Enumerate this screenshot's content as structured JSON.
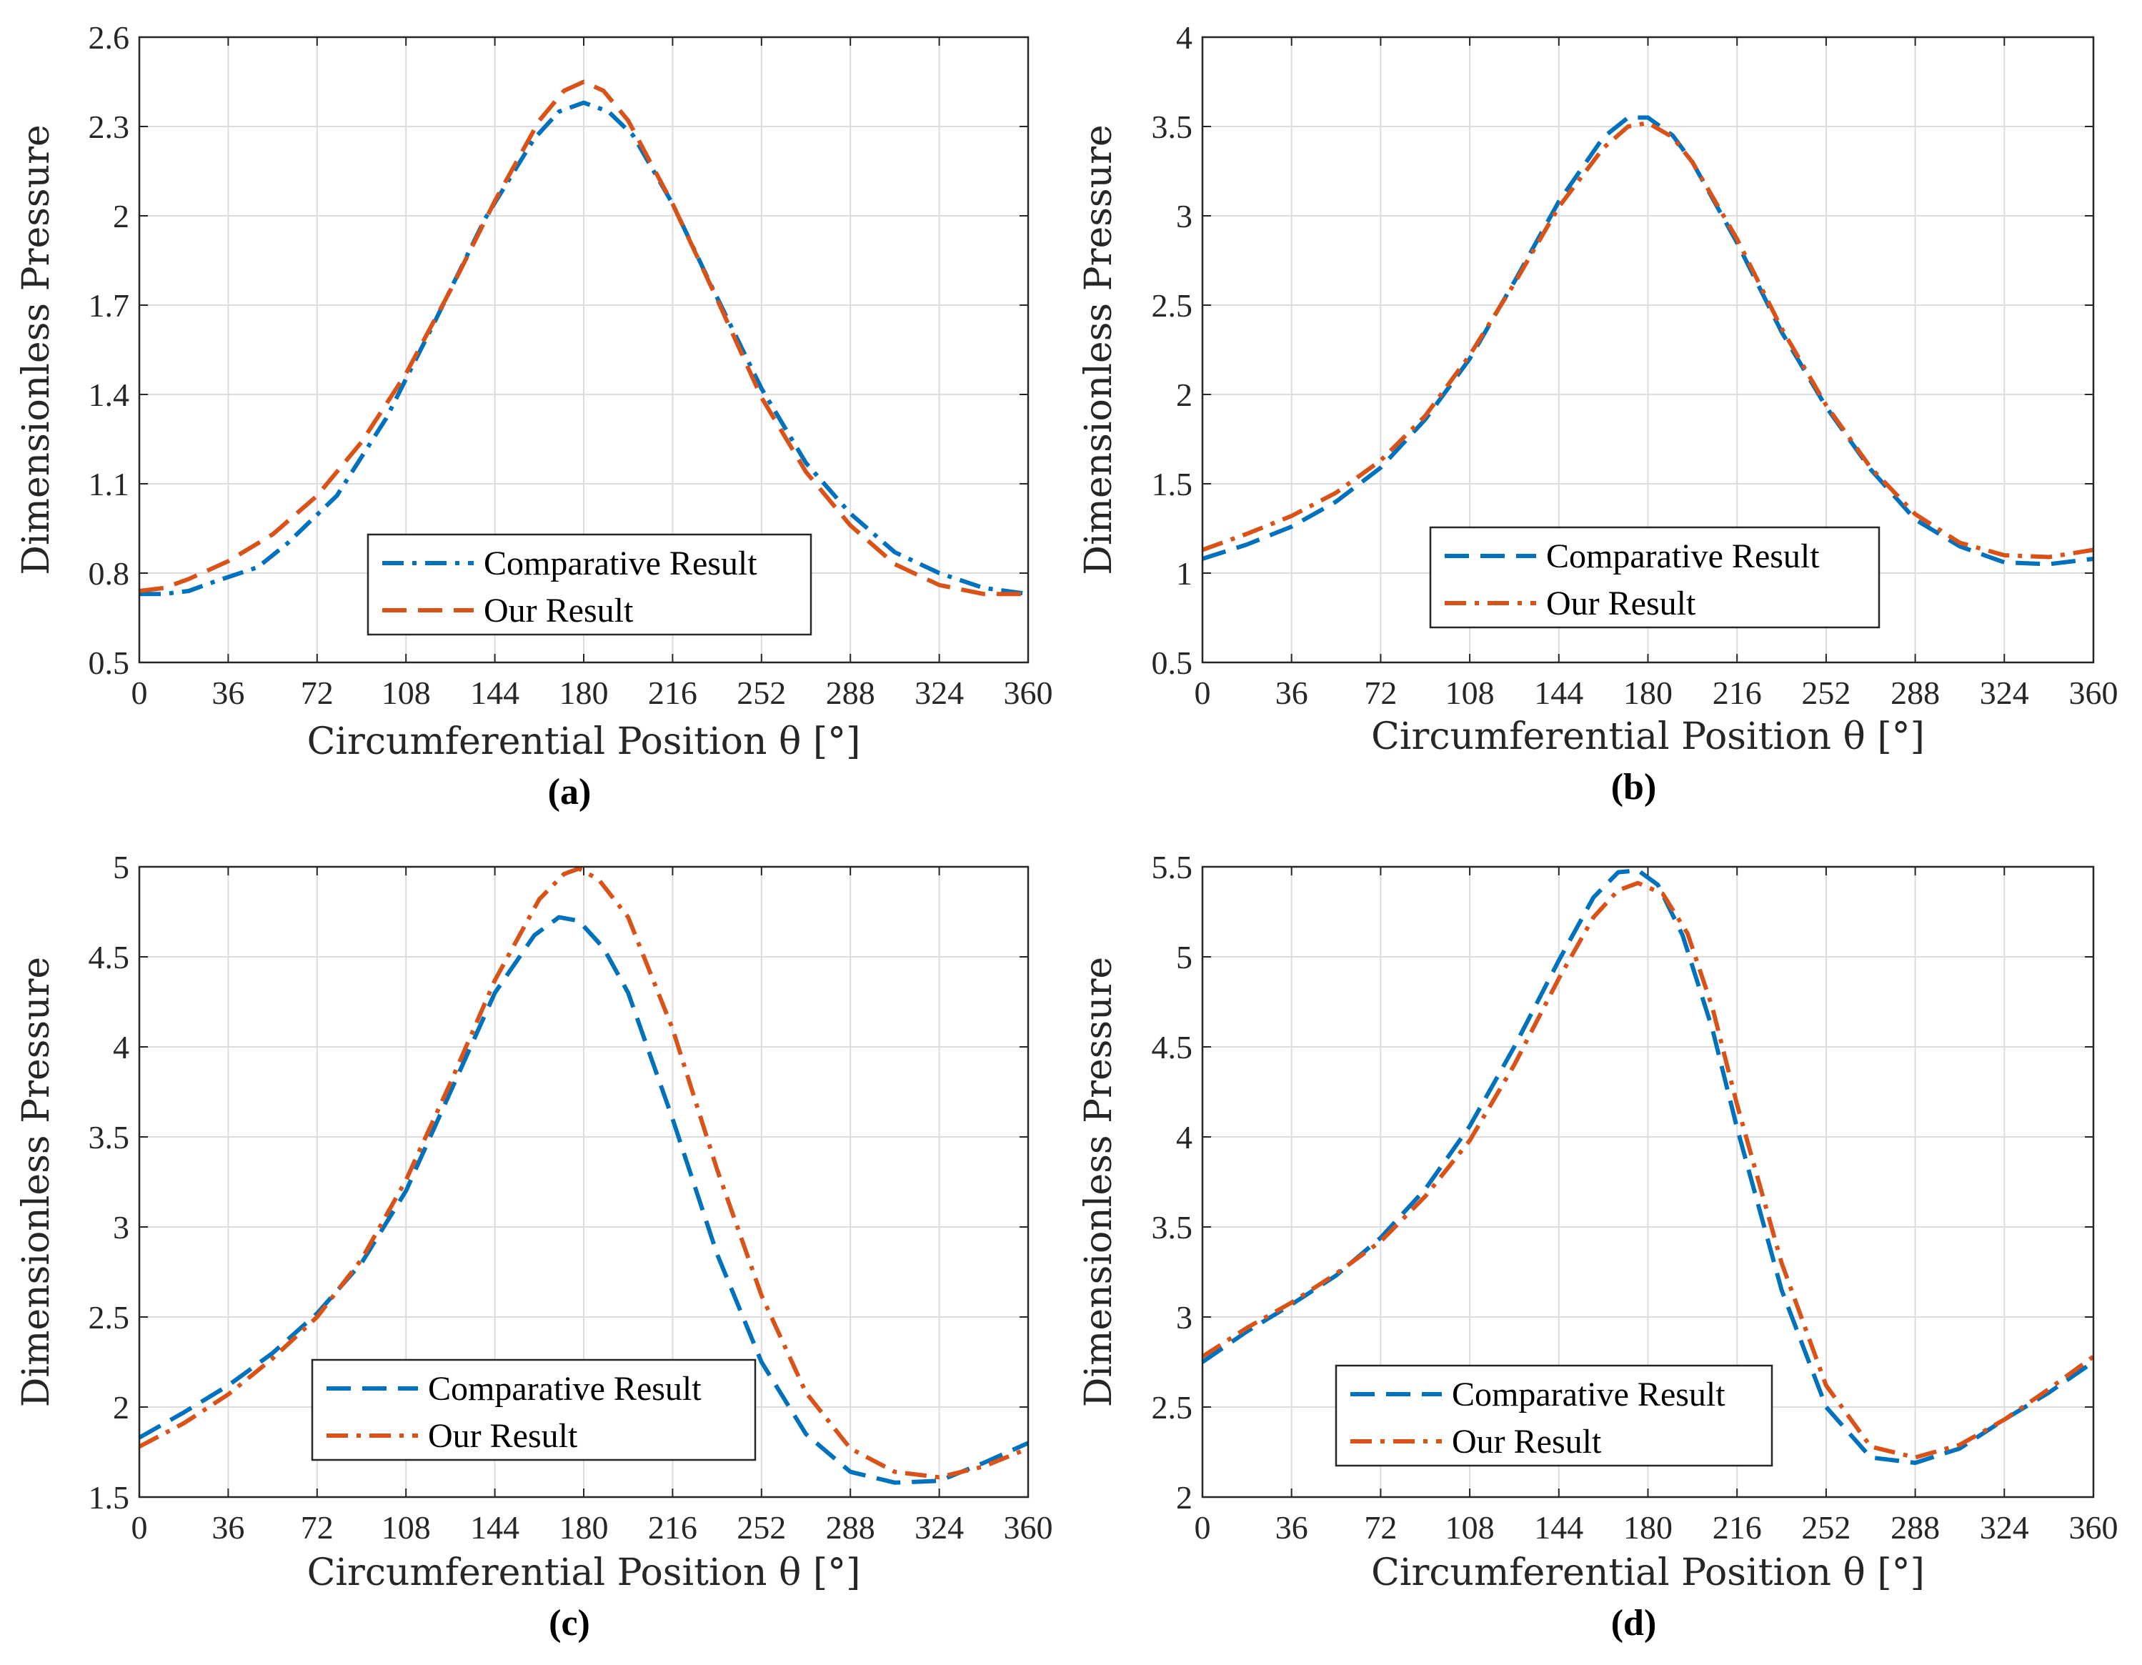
{
  "colors": {
    "blue": "#0072BD",
    "orange": "#D95319",
    "axis": "#262626",
    "grid": "#dcdcdc"
  },
  "chart_data": [
    {
      "type": "line",
      "panel_label": "(a)",
      "xlabel": "Circumferential Position θ [°]",
      "ylabel": "Dimensionless Pressure",
      "xlim": [
        0,
        360
      ],
      "ylim": [
        0.5,
        2.6
      ],
      "xticks": [
        0,
        36,
        72,
        108,
        144,
        180,
        216,
        252,
        288,
        324,
        360
      ],
      "yticks": [
        0.5,
        0.8,
        1.1,
        1.4,
        1.7,
        2,
        2.3,
        2.6
      ],
      "ytick_labels": [
        "0.5",
        "0.8",
        "1.1",
        "1.4",
        "1.7",
        "2",
        "2.3",
        "2.6"
      ],
      "grid": true,
      "legend_position": "bottom-center",
      "series": [
        {
          "name": "Comparative Result",
          "style": "dashdot",
          "color": "#0072BD",
          "x": [
            0,
            10,
            20,
            30,
            48,
            60,
            80,
            100,
            120,
            140,
            160,
            170,
            180,
            190,
            200,
            216,
            232,
            252,
            270,
            288,
            306,
            324,
            342,
            360
          ],
          "y": [
            0.73,
            0.73,
            0.74,
            0.77,
            0.82,
            0.9,
            1.06,
            1.32,
            1.65,
            1.99,
            2.26,
            2.35,
            2.38,
            2.35,
            2.27,
            2.04,
            1.76,
            1.42,
            1.17,
            1.0,
            0.87,
            0.8,
            0.75,
            0.73
          ]
        },
        {
          "name": "Our Result",
          "style": "dashed",
          "color": "#D95319",
          "x": [
            0,
            10,
            20,
            36,
            54,
            72,
            90,
            108,
            126,
            144,
            162,
            172,
            180,
            188,
            198,
            216,
            234,
            252,
            270,
            288,
            306,
            324,
            342,
            360
          ],
          "y": [
            0.74,
            0.75,
            0.78,
            0.84,
            0.93,
            1.06,
            1.24,
            1.47,
            1.75,
            2.05,
            2.32,
            2.42,
            2.45,
            2.42,
            2.32,
            2.04,
            1.72,
            1.39,
            1.14,
            0.96,
            0.83,
            0.76,
            0.73,
            0.73
          ]
        }
      ]
    },
    {
      "type": "line",
      "panel_label": "(b)",
      "xlabel": "Circumferential Position θ [°]",
      "ylabel": "Dimensionless Pressure",
      "xlim": [
        0,
        360
      ],
      "ylim": [
        0.5,
        4
      ],
      "xticks": [
        0,
        36,
        72,
        108,
        144,
        180,
        216,
        252,
        288,
        324,
        360
      ],
      "yticks": [
        0.5,
        1,
        1.5,
        2,
        2.5,
        3,
        3.5,
        4
      ],
      "ytick_labels": [
        "0.5",
        "1",
        "1.5",
        "2",
        "2.5",
        "3",
        "3.5",
        "4"
      ],
      "grid": true,
      "legend_position": "bottom-center",
      "series": [
        {
          "name": "Comparative Result",
          "style": "dashed",
          "color": "#0072BD",
          "x": [
            0,
            18,
            36,
            54,
            72,
            90,
            108,
            126,
            144,
            162,
            172,
            180,
            190,
            198,
            216,
            234,
            252,
            270,
            288,
            306,
            324,
            342,
            360
          ],
          "y": [
            1.08,
            1.16,
            1.26,
            1.4,
            1.59,
            1.86,
            2.2,
            2.63,
            3.08,
            3.44,
            3.55,
            3.55,
            3.45,
            3.3,
            2.85,
            2.35,
            1.93,
            1.58,
            1.3,
            1.15,
            1.06,
            1.05,
            1.08
          ]
        },
        {
          "name": "Our Result",
          "style": "dashdot",
          "color": "#D95319",
          "x": [
            0,
            18,
            36,
            54,
            72,
            90,
            108,
            126,
            144,
            162,
            172,
            180,
            190,
            198,
            216,
            234,
            252,
            270,
            288,
            306,
            324,
            342,
            360
          ],
          "y": [
            1.13,
            1.22,
            1.32,
            1.45,
            1.63,
            1.88,
            2.22,
            2.62,
            3.05,
            3.38,
            3.5,
            3.52,
            3.44,
            3.3,
            2.87,
            2.37,
            1.94,
            1.59,
            1.33,
            1.17,
            1.1,
            1.09,
            1.13
          ]
        }
      ]
    },
    {
      "type": "line",
      "panel_label": "(c)",
      "xlabel": "Circumferential Position θ [°]",
      "ylabel": "Dimensionless Pressure",
      "xlim": [
        0,
        360
      ],
      "ylim": [
        1.5,
        5
      ],
      "xticks": [
        0,
        36,
        72,
        108,
        144,
        180,
        216,
        252,
        288,
        324,
        360
      ],
      "yticks": [
        1.5,
        2,
        2.5,
        3,
        3.5,
        4,
        4.5,
        5
      ],
      "ytick_labels": [
        "1.5",
        "2",
        "2.5",
        "3",
        "3.5",
        "4",
        "4.5",
        "5"
      ],
      "grid": true,
      "legend_position": "bottom-center",
      "series": [
        {
          "name": "Comparative Result",
          "style": "dashed",
          "color": "#0072BD",
          "x": [
            0,
            18,
            36,
            54,
            72,
            90,
            108,
            126,
            144,
            160,
            170,
            178,
            188,
            198,
            216,
            234,
            252,
            270,
            288,
            306,
            324,
            342,
            360
          ],
          "y": [
            1.83,
            1.97,
            2.12,
            2.3,
            2.52,
            2.8,
            3.2,
            3.75,
            4.3,
            4.62,
            4.72,
            4.7,
            4.55,
            4.3,
            3.6,
            2.85,
            2.25,
            1.85,
            1.64,
            1.58,
            1.59,
            1.69,
            1.8
          ]
        },
        {
          "name": "Our Result",
          "style": "dashdot",
          "color": "#D95319",
          "x": [
            0,
            18,
            36,
            54,
            72,
            90,
            108,
            126,
            144,
            162,
            172,
            178,
            186,
            198,
            216,
            234,
            252,
            270,
            288,
            306,
            324,
            342,
            360
          ],
          "y": [
            1.78,
            1.91,
            2.07,
            2.27,
            2.5,
            2.82,
            3.26,
            3.8,
            4.37,
            4.82,
            4.96,
            4.99,
            4.93,
            4.72,
            4.1,
            3.32,
            2.62,
            2.08,
            1.77,
            1.64,
            1.61,
            1.67,
            1.77
          ]
        }
      ]
    },
    {
      "type": "line",
      "panel_label": "(d)",
      "xlabel": "Circumferential Position θ [°]",
      "ylabel": "Dimensionless Pressure",
      "xlim": [
        0,
        360
      ],
      "ylim": [
        2,
        5.5
      ],
      "xticks": [
        0,
        36,
        72,
        108,
        144,
        180,
        216,
        252,
        288,
        324,
        360
      ],
      "yticks": [
        2,
        2.5,
        3,
        3.5,
        4,
        4.5,
        5,
        5.5
      ],
      "ytick_labels": [
        "2",
        "2.5",
        "3",
        "3.5",
        "4",
        "4.5",
        "5",
        "5.5"
      ],
      "grid": true,
      "legend_position": "bottom-center",
      "series": [
        {
          "name": "Comparative Result",
          "style": "dashed",
          "color": "#0072BD",
          "x": [
            0,
            18,
            36,
            54,
            72,
            90,
            108,
            126,
            144,
            158,
            168,
            176,
            184,
            194,
            206,
            216,
            234,
            252,
            270,
            288,
            306,
            324,
            342,
            360
          ],
          "y": [
            2.75,
            2.92,
            3.07,
            3.23,
            3.44,
            3.71,
            4.06,
            4.5,
            4.98,
            5.33,
            5.47,
            5.48,
            5.4,
            5.12,
            4.6,
            4.05,
            3.15,
            2.5,
            2.22,
            2.19,
            2.27,
            2.43,
            2.58,
            2.75
          ]
        },
        {
          "name": "Our Result",
          "style": "dashdot",
          "color": "#D95319",
          "x": [
            0,
            18,
            36,
            54,
            72,
            90,
            108,
            126,
            144,
            158,
            168,
            176,
            186,
            196,
            206,
            216,
            234,
            252,
            270,
            288,
            306,
            324,
            342,
            360
          ],
          "y": [
            2.78,
            2.94,
            3.08,
            3.24,
            3.42,
            3.67,
            3.98,
            4.4,
            4.88,
            5.22,
            5.37,
            5.41,
            5.35,
            5.13,
            4.72,
            4.18,
            3.3,
            2.62,
            2.28,
            2.22,
            2.29,
            2.43,
            2.6,
            2.78
          ]
        }
      ]
    }
  ]
}
